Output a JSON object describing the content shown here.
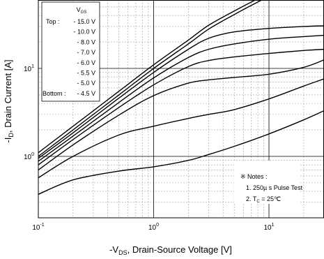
{
  "chart_data": {
    "type": "line",
    "x_scale": "log",
    "y_scale": "log",
    "xlim": [
      0.1,
      30
    ],
    "ylim": [
      0.2,
      60
    ],
    "grid": true,
    "xlabel": {
      "main": "-V",
      "sub": "DS",
      "rest": ", Drain-Source Voltage [V]"
    },
    "ylabel": {
      "main": "-I",
      "sub": "D",
      "rest": ", Drain Current [A]"
    },
    "x_ticks": [
      {
        "value": 0.1,
        "base": "10",
        "exp": "-1"
      },
      {
        "value": 1,
        "base": "10",
        "exp": "0"
      },
      {
        "value": 10,
        "base": "10",
        "exp": "1"
      }
    ],
    "y_ticks": [
      {
        "value": 1,
        "base": "10",
        "exp": "0"
      },
      {
        "value": 10,
        "base": "10",
        "exp": "1"
      }
    ],
    "legend": {
      "header_main": "V",
      "header_sub": "GS",
      "top_label": "Top :",
      "bottom_label": "Bottom :",
      "entries": [
        "- 15.0 V",
        "- 10.0 V",
        "- 8.0 V",
        "- 7.0 V",
        "- 6.0 V",
        "- 5.5 V",
        "- 5.0 V",
        "- 4.5 V"
      ]
    },
    "notes": {
      "title": "※ Notes :",
      "line1": "1. 250µ s Pulse Test",
      "line2_main": "2. T",
      "line2_sub": "C",
      "line2_rest": " = 25℃"
    },
    "series": [
      {
        "x": [
          0.1,
          0.2,
          0.5,
          1,
          2,
          3,
          5,
          8,
          12
        ],
        "y": [
          1.1,
          2.2,
          5.5,
          11,
          21,
          31,
          45,
          62,
          80
        ]
      },
      {
        "x": [
          0.1,
          0.2,
          0.5,
          1,
          2,
          3,
          5,
          7,
          12
        ],
        "y": [
          1.0,
          2.0,
          5.0,
          10,
          19,
          28,
          41,
          52,
          75
        ]
      },
      {
        "x": [
          0.1,
          0.2,
          0.5,
          1,
          2,
          3,
          5,
          10,
          20,
          30
        ],
        "y": [
          0.95,
          1.85,
          4.6,
          9.0,
          16.5,
          22,
          26,
          28.5,
          30,
          30.5
        ]
      },
      {
        "x": [
          0.1,
          0.2,
          0.5,
          1,
          2,
          3,
          5,
          10,
          20,
          30
        ],
        "y": [
          0.88,
          1.7,
          4.1,
          7.8,
          13.3,
          16.5,
          19,
          21.5,
          23,
          23.8
        ]
      },
      {
        "x": [
          0.1,
          0.2,
          0.5,
          1,
          2,
          3,
          5,
          10,
          20,
          30
        ],
        "y": [
          0.8,
          1.55,
          3.6,
          6.5,
          10.5,
          12.3,
          13.5,
          14.8,
          16,
          16.5
        ]
      },
      {
        "x": [
          0.1,
          0.2,
          0.5,
          1,
          2,
          3,
          5,
          10,
          20,
          30
        ],
        "y": [
          0.7,
          1.35,
          2.95,
          4.9,
          6.8,
          7.4,
          7.9,
          8.6,
          10.3,
          12.5
        ]
      },
      {
        "x": [
          0.1,
          0.2,
          0.5,
          1,
          2,
          3,
          5,
          10,
          20,
          30
        ],
        "y": [
          0.57,
          1.0,
          1.75,
          2.2,
          2.7,
          3.0,
          3.4,
          4.5,
          6.3,
          7.6
        ]
      },
      {
        "x": [
          0.1,
          0.2,
          0.5,
          1,
          2,
          3,
          5,
          10,
          20,
          30
        ],
        "y": [
          0.37,
          0.54,
          0.68,
          0.76,
          0.9,
          1.05,
          1.3,
          1.8,
          2.6,
          3.3
        ]
      }
    ]
  }
}
